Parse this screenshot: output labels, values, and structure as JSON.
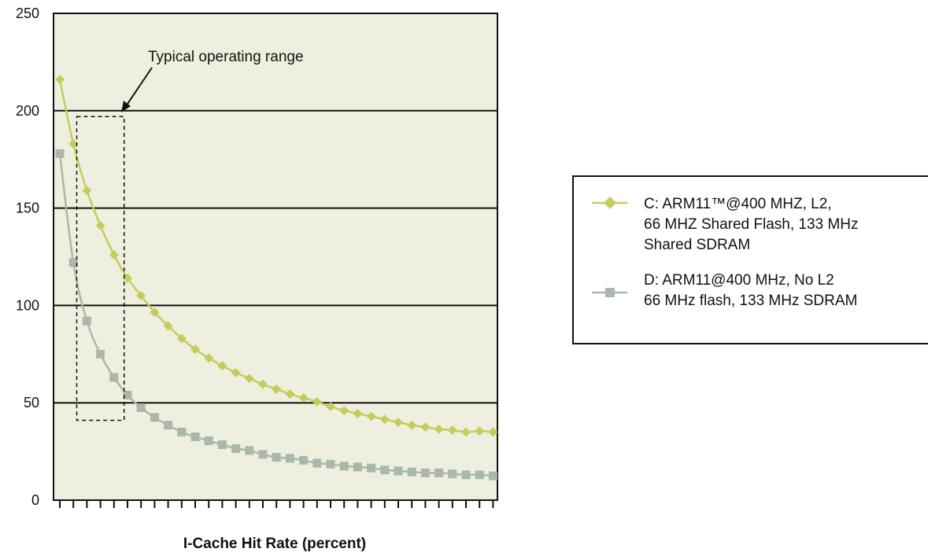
{
  "chart_data": {
    "type": "line",
    "title": "",
    "xlabel": "I-Cache Hit Rate (percent)",
    "ylabel": "",
    "ylim": [
      0,
      250
    ],
    "yticks": [
      0,
      50,
      100,
      150,
      200,
      250
    ],
    "x_tick_count": 33,
    "grid": "horizontal",
    "legend_position": "right",
    "annotation": {
      "text": "Typical operating range",
      "box_x": [
        1.25,
        4.75
      ],
      "box_y": [
        41,
        197
      ]
    },
    "x": [
      0,
      1,
      2,
      3,
      4,
      5,
      6,
      7,
      8,
      9,
      10,
      11,
      12,
      13,
      14,
      15,
      16,
      17,
      18,
      19,
      20,
      21,
      22,
      23,
      24,
      25,
      26,
      27,
      28,
      29,
      30,
      31,
      32
    ],
    "series": [
      {
        "name": "C: ARM11™@400 MHZ, L2, 66 MHZ Shared Flash, 133 MHz Shared SDRAM",
        "legend_lines": [
          "C: ARM11™@400 MHZ, L2,",
          "66 MHZ Shared Flash, 133 MHz",
          "Shared SDRAM"
        ],
        "color": "#c5cc5e",
        "marker": "diamond",
        "values": [
          216,
          183,
          159,
          141,
          126,
          114,
          105,
          96.5,
          89.5,
          83,
          77.5,
          73,
          69,
          65.5,
          62.5,
          59.5,
          57,
          54.5,
          52.5,
          50.5,
          48,
          46,
          44.5,
          43,
          41.5,
          40,
          38.5,
          37.5,
          36.5,
          36,
          35,
          35.5,
          35
        ]
      },
      {
        "name": "D: ARM11@400 MHz, No L2 66 MHz flash, 133 MHz SDRAM",
        "legend_lines": [
          "D: ARM11@400 MHz, No L2",
          "66 MHz flash, 133 MHz SDRAM"
        ],
        "color": "#a9b7ad",
        "marker": "square",
        "values": [
          178,
          122,
          92,
          75,
          63,
          54,
          47.5,
          42.5,
          38.5,
          35,
          32.5,
          30.5,
          28.5,
          26.5,
          25.5,
          23.5,
          22,
          21.5,
          20.5,
          19,
          18.5,
          17.5,
          17,
          16.5,
          15.5,
          15,
          14.5,
          14,
          14,
          13.5,
          13,
          13,
          12.5
        ]
      }
    ]
  }
}
